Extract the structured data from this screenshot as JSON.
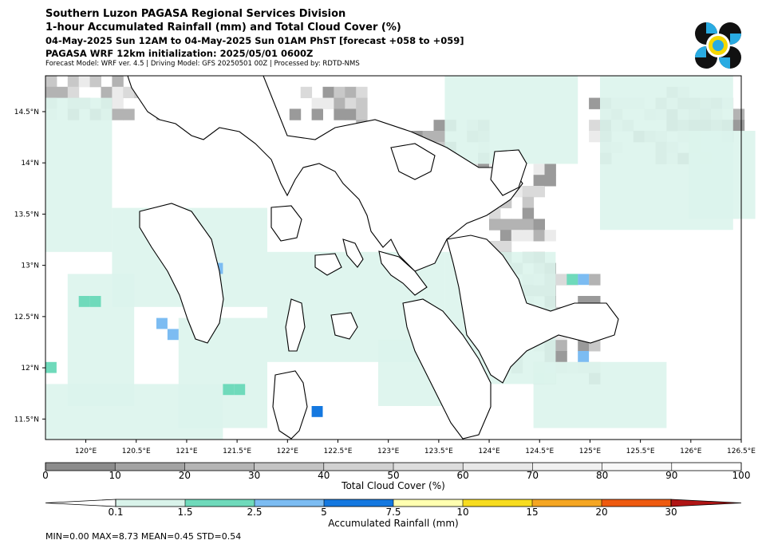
{
  "header": {
    "line1": "Southern Luzon PAGASA Regional Services Division",
    "line2": "1-hour Accumulated Rainfall (mm) and Total Cloud Cover (%)",
    "line3": "04-May-2025 Sun 12AM to 04-May-2025 Sun 01AM PhST [forecast +058 to +059]",
    "line4": "PAGASA WRF 12km initialization: 2025/05/01 0600Z",
    "line5": "Forecast Model: WRF ver. 4.5 | Driving Model: GFS 20250501 00Z | Processed by: RDTD-NMS"
  },
  "logo": {
    "icon": "pagasa-logo-icon",
    "colors": [
      "#111111",
      "#29abe2",
      "#f5d800",
      "#ffffff"
    ]
  },
  "map": {
    "lon_ticks": [
      "120°E",
      "120.5°E",
      "121°E",
      "121.5°E",
      "122°E",
      "122.5°E",
      "123°E",
      "123.5°E",
      "124°E",
      "124.5°E",
      "125°E",
      "125.5°E",
      "126°E",
      "126.5°E"
    ],
    "lat_ticks": [
      "14.5°N",
      "14°N",
      "13.5°N",
      "13°N",
      "12.5°N",
      "12°N",
      "11.5°N"
    ],
    "lon_range": [
      119.6,
      126.5
    ],
    "lat_range": [
      11.3,
      14.85
    ],
    "background_color": "#ffffff",
    "land_outline_color": "#000000"
  },
  "cloud_colorbar": {
    "title": "Total Cloud Cover (%)",
    "ticks": [
      "0",
      "10",
      "20",
      "30",
      "40",
      "50",
      "60",
      "70",
      "80",
      "90",
      "100"
    ],
    "colors": [
      "#8c8c8c",
      "#a3a3a3",
      "#b5b5b5",
      "#c4c4c4",
      "#d1d1d1",
      "#dddddd",
      "#e8e8e8",
      "#f1f1f1",
      "#f8f8f8",
      "#ffffff"
    ]
  },
  "rain_colorbar": {
    "title": "Accumulated Rainfall (mm)",
    "ticks": [
      "0.1",
      "1.5",
      "2.5",
      "5",
      "7.5",
      "10",
      "15",
      "20",
      "30"
    ],
    "colors": [
      "#ffffff",
      "#d9f3ea",
      "#6fdabb",
      "#7cbcf2",
      "#1478e0",
      "#ffffb0",
      "#f7dc1f",
      "#f5a623",
      "#ee5a0f",
      "#b01515"
    ]
  },
  "stats": "MIN=0.00   MAX=8.73   MEAN=0.45   STD=0.54"
}
